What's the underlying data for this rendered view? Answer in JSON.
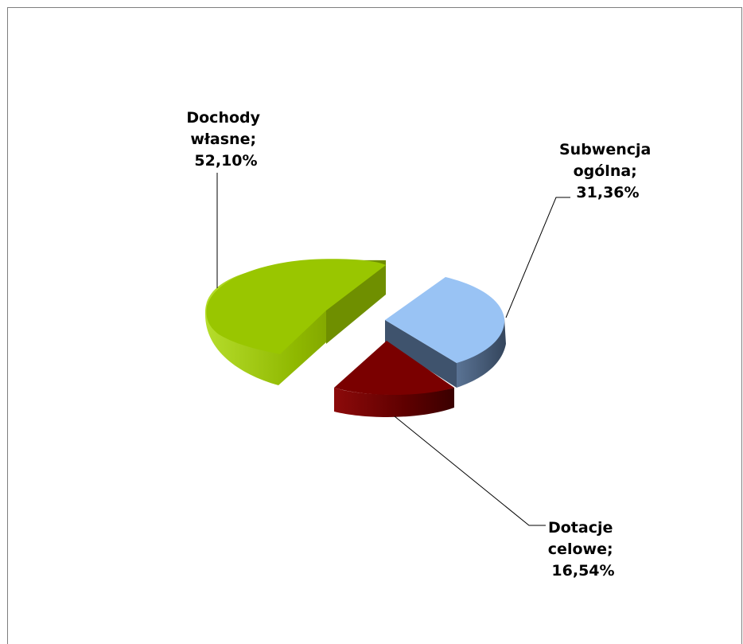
{
  "chart_data": {
    "type": "pie",
    "style": "3d-exploded",
    "categories": [
      "Dochody własne",
      "Subwencja ogólna",
      "Dotacje celowe"
    ],
    "values": [
      52.1,
      31.36,
      16.54
    ],
    "unit": "%",
    "labels": [
      {
        "lines": [
          "Dochody",
          "własne;",
          "52,10%"
        ]
      },
      {
        "lines": [
          "Subwencja",
          "ogólna;",
          "31,36%"
        ]
      },
      {
        "lines": [
          "Dotacje",
          "celowe;",
          "16,54%"
        ]
      }
    ],
    "colors": {
      "top": [
        "#99c600",
        "#99c3f4",
        "#7a0000"
      ],
      "side": [
        "#7e9e00",
        "#40546e",
        "#5a0000"
      ],
      "side_edge": [
        "#5d7a00",
        "#2e3f54",
        "#330000"
      ]
    },
    "legend": "none",
    "grid": false
  }
}
